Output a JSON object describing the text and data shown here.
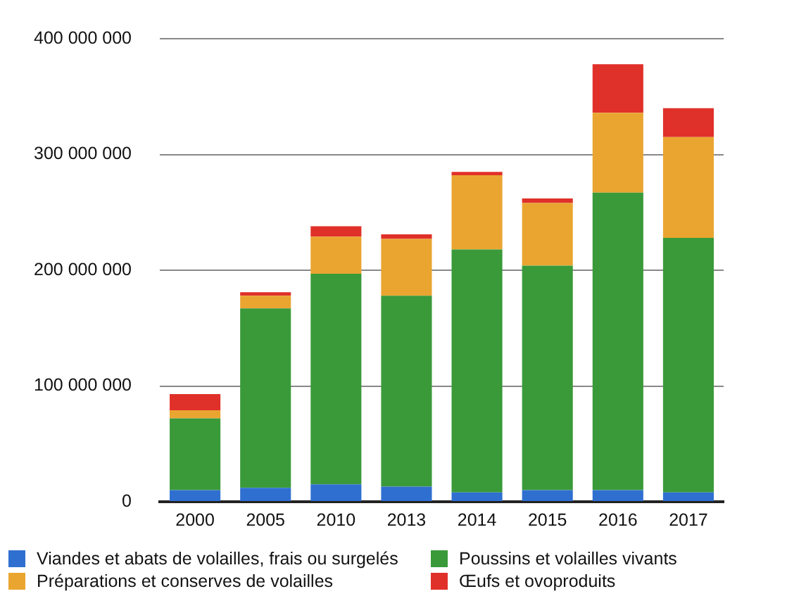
{
  "chart_data": {
    "type": "bar",
    "stacked": true,
    "categories": [
      "2000",
      "2005",
      "2010",
      "2013",
      "2014",
      "2015",
      "2016",
      "2017"
    ],
    "series": [
      {
        "name": "Viandes et abats de volailles, frais ou surgelés",
        "color": "#2f6fd0",
        "values": [
          10000000,
          12000000,
          15000000,
          13000000,
          8000000,
          10000000,
          10000000,
          8000000
        ]
      },
      {
        "name": "Poussins et volailles vivants",
        "color": "#3a9a3a",
        "values": [
          62000000,
          155000000,
          182000000,
          165000000,
          210000000,
          194000000,
          257000000,
          220000000
        ]
      },
      {
        "name": "Préparations et conserves de volailles",
        "color": "#eaa530",
        "values": [
          7000000,
          11000000,
          32000000,
          49000000,
          64000000,
          54000000,
          69000000,
          87000000
        ]
      },
      {
        "name": "Œufs et ovoproduits",
        "color": "#e0302a",
        "values": [
          14000000,
          3000000,
          9000000,
          4000000,
          3000000,
          4000000,
          42000000,
          25000000
        ]
      }
    ],
    "ylim": [
      0,
      400000000
    ],
    "yticks": [
      0,
      {
        "value": 100000000,
        "label": "100 000 000"
      },
      {
        "value": 200000000,
        "label": "200 000 000"
      },
      {
        "value": 300000000,
        "label": "300 000 000"
      },
      {
        "value": 400000000,
        "label": "400 000 000"
      }
    ],
    "grid": "y",
    "legend": "bottom"
  }
}
